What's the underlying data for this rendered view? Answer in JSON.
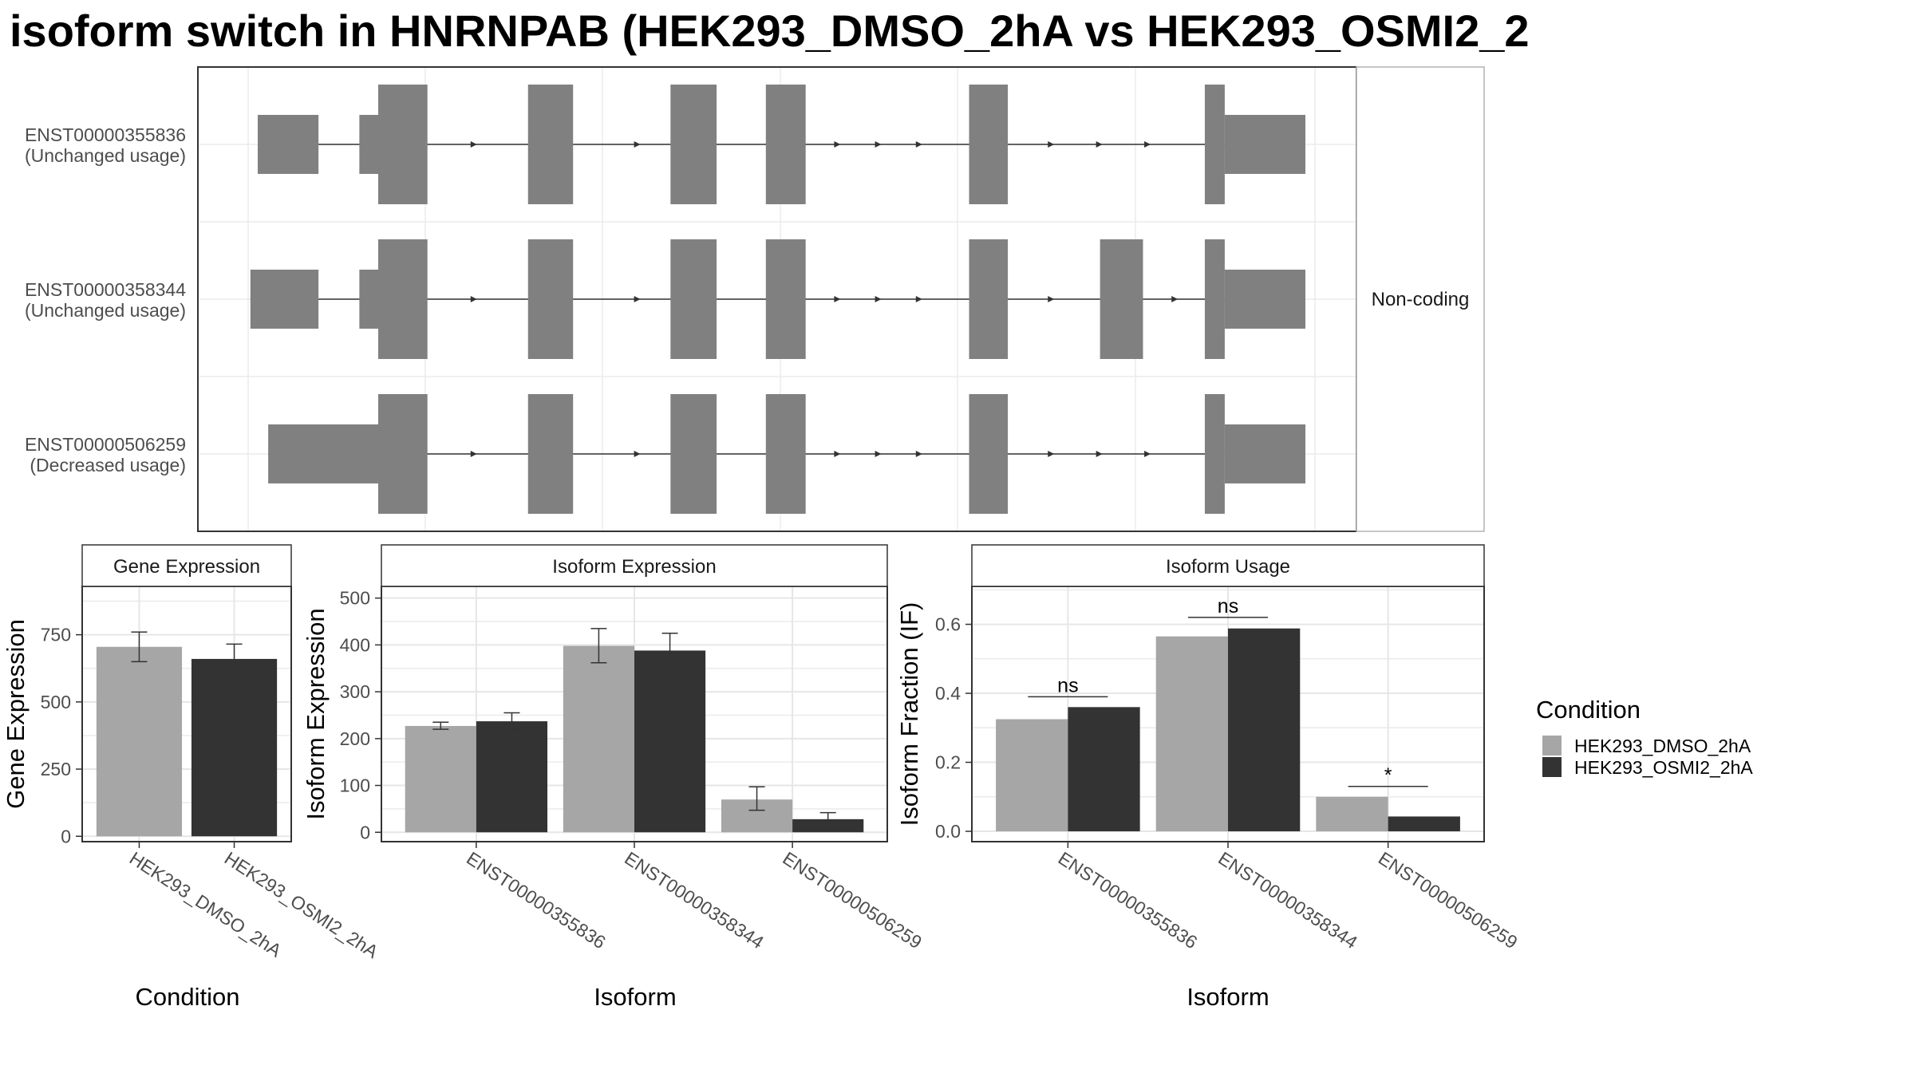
{
  "title": "isoform switch in HNRNPAB (HEK293_DMSO_2hA vs HEK293_OSMI2_2",
  "structure": {
    "facet_label": "Non-coding",
    "isoforms": [
      {
        "id": "ENST00000355836",
        "usage": "(Unchanged usage)",
        "utr": [
          [
            0.0,
            0.058
          ],
          [
            0.097,
            0.115
          ],
          [
            0.923,
            1.0
          ]
        ],
        "cds": [
          [
            0.115,
            0.162
          ],
          [
            0.258,
            0.301
          ],
          [
            0.394,
            0.438
          ],
          [
            0.485,
            0.523
          ],
          [
            0.679,
            0.716
          ],
          [
            0.904,
            0.923
          ]
        ],
        "arrows": [
          0.207,
          0.363,
          0.554,
          0.593,
          0.632,
          0.758,
          0.804,
          0.85
        ]
      },
      {
        "id": "ENST00000358344",
        "usage": "(Unchanged usage)",
        "utr": [
          [
            -0.007,
            0.058
          ],
          [
            0.097,
            0.115
          ],
          [
            0.923,
            1.0
          ]
        ],
        "cds": [
          [
            0.115,
            0.162
          ],
          [
            0.258,
            0.301
          ],
          [
            0.394,
            0.438
          ],
          [
            0.485,
            0.523
          ],
          [
            0.679,
            0.716
          ],
          [
            0.804,
            0.845
          ],
          [
            0.904,
            0.923
          ]
        ],
        "arrows": [
          0.207,
          0.363,
          0.554,
          0.593,
          0.632,
          0.758,
          0.876
        ]
      },
      {
        "id": "ENST00000506259",
        "usage": "(Decreased usage)",
        "utr": [
          [
            0.01,
            0.115
          ],
          [
            0.923,
            1.0
          ]
        ],
        "cds": [
          [
            0.115,
            0.162
          ],
          [
            0.258,
            0.301
          ],
          [
            0.394,
            0.438
          ],
          [
            0.485,
            0.523
          ],
          [
            0.679,
            0.716
          ],
          [
            0.904,
            0.923
          ]
        ],
        "arrows": [
          0.207,
          0.363,
          0.554,
          0.593,
          0.632,
          0.758,
          0.804,
          0.85
        ]
      }
    ]
  },
  "legend": {
    "title": "Condition",
    "items": [
      {
        "label": "HEK293_DMSO_2hA",
        "color": "#a6a6a6"
      },
      {
        "label": "HEK293_OSMI2_2hA",
        "color": "#333333"
      }
    ]
  },
  "chart_data": [
    {
      "type": "bar",
      "title": "Gene Expression",
      "xlabel": "Condition",
      "ylabel": "Gene Expression",
      "ylim": [
        -20,
        930
      ],
      "yticks": [
        0,
        250,
        500,
        750
      ],
      "categories": [
        "HEK293_DMSO_2hA",
        "HEK293_OSMI2_2hA"
      ],
      "values": [
        705,
        660
      ],
      "errors": [
        [
          650,
          760
        ],
        [
          605,
          715
        ]
      ],
      "colors": [
        "#a6a6a6",
        "#333333"
      ]
    },
    {
      "type": "bar",
      "title": "Isoform Expression",
      "xlabel": "Isoform",
      "ylabel": "Isoform Expression",
      "ylim": [
        -20,
        525
      ],
      "yticks": [
        0,
        100,
        200,
        300,
        400,
        500
      ],
      "categories": [
        "ENST00000355836",
        "ENST00000358344",
        "ENST00000506259"
      ],
      "series": [
        {
          "name": "HEK293_DMSO_2hA",
          "color": "#a6a6a6",
          "values": [
            227,
            398,
            70
          ],
          "errors": [
            [
              220,
              235
            ],
            [
              362,
              435
            ],
            [
              47,
              97
            ]
          ]
        },
        {
          "name": "HEK293_OSMI2_2hA",
          "color": "#333333",
          "values": [
            237,
            388,
            28
          ],
          "errors": [
            [
              220,
              255
            ],
            [
              350,
              425
            ],
            [
              17,
              42
            ]
          ]
        }
      ]
    },
    {
      "type": "bar",
      "title": "Isoform Usage",
      "xlabel": "Isoform",
      "ylabel": "Isoform Fraction (IF)",
      "ylim": [
        -0.03,
        0.71
      ],
      "yticks": [
        0.0,
        0.2,
        0.4,
        0.6
      ],
      "yticklabels": [
        "0.0",
        "0.2",
        "0.4",
        "0.6"
      ],
      "categories": [
        "ENST00000355836",
        "ENST00000358344",
        "ENST00000506259"
      ],
      "series": [
        {
          "name": "HEK293_DMSO_2hA",
          "color": "#a6a6a6",
          "values": [
            0.325,
            0.565,
            0.1
          ]
        },
        {
          "name": "HEK293_OSMI2_2hA",
          "color": "#333333",
          "values": [
            0.36,
            0.588,
            0.043
          ]
        }
      ],
      "significance": [
        {
          "label": "ns",
          "y": 0.39
        },
        {
          "label": "ns",
          "y": 0.62
        },
        {
          "label": "*",
          "y": 0.13
        }
      ]
    }
  ]
}
